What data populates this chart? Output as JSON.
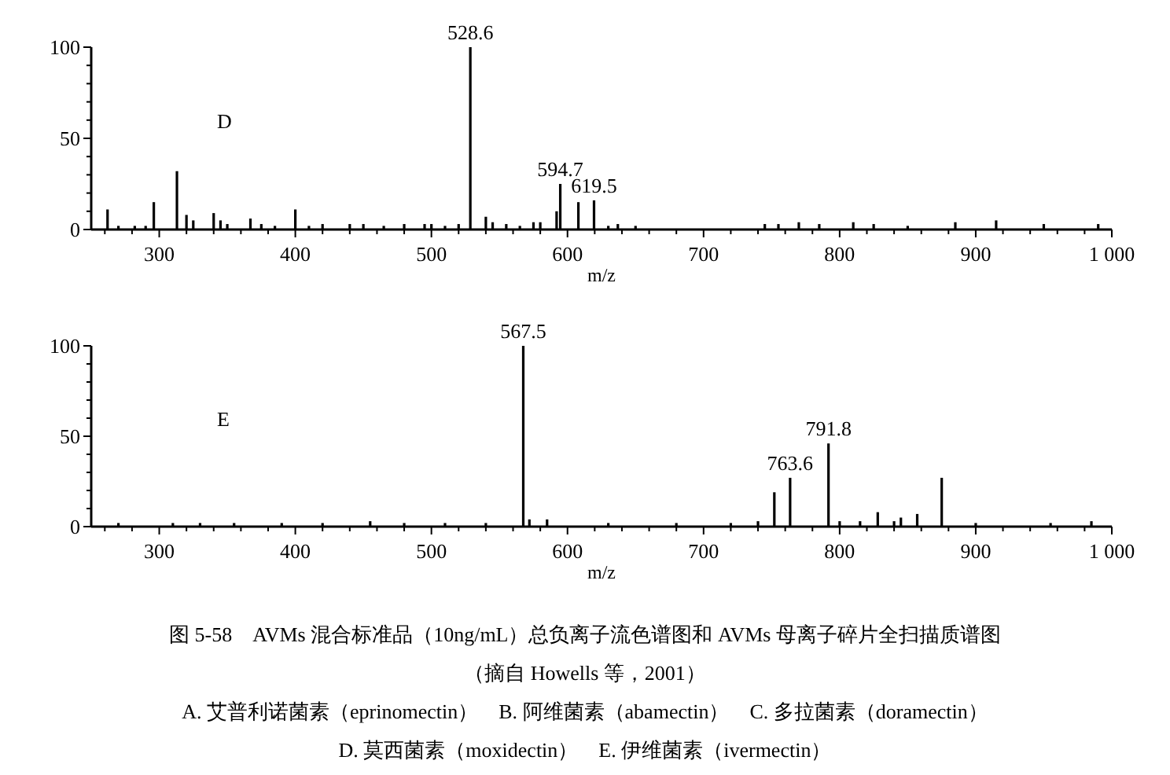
{
  "chart_data": [
    {
      "type": "bar",
      "title": "D",
      "xlabel": "m/z",
      "xlim": [
        250,
        1000
      ],
      "ylim": [
        0,
        100
      ],
      "xticks": [
        {
          "value": 260,
          "label": null
        },
        {
          "value": 280,
          "label": null
        },
        300,
        {
          "value": 320,
          "label": null
        },
        {
          "value": 340,
          "label": null
        },
        {
          "value": 360,
          "label": null
        },
        {
          "value": 380,
          "label": null
        },
        400,
        {
          "value": 420,
          "label": null
        },
        {
          "value": 440,
          "label": null
        },
        {
          "value": 460,
          "label": null
        },
        {
          "value": 480,
          "label": null
        },
        500,
        {
          "value": 520,
          "label": null
        },
        {
          "value": 540,
          "label": null
        },
        {
          "value": 560,
          "label": null
        },
        {
          "value": 580,
          "label": null
        },
        600,
        {
          "value": 620,
          "label": null
        },
        {
          "value": 640,
          "label": null
        },
        {
          "value": 660,
          "label": null
        },
        {
          "value": 680,
          "label": null
        },
        700,
        {
          "value": 720,
          "label": null
        },
        {
          "value": 740,
          "label": null
        },
        {
          "value": 760,
          "label": null
        },
        {
          "value": 780,
          "label": null
        },
        800,
        {
          "value": 820,
          "label": null
        },
        {
          "value": 840,
          "label": null
        },
        {
          "value": 860,
          "label": null
        },
        {
          "value": 880,
          "label": null
        },
        900,
        {
          "value": 920,
          "label": null
        },
        {
          "value": 940,
          "label": null
        },
        {
          "value": 960,
          "label": null
        },
        {
          "value": 980,
          "label": null
        },
        {
          "value": 1000,
          "label": "1 000"
        }
      ],
      "yticks": [
        0,
        {
          "value": 10,
          "label": null
        },
        {
          "value": 20,
          "label": null
        },
        {
          "value": 30,
          "label": null
        },
        {
          "value": 40,
          "label": null
        },
        50,
        {
          "value": 60,
          "label": null
        },
        {
          "value": 70,
          "label": null
        },
        {
          "value": 80,
          "label": null
        },
        {
          "value": 90,
          "label": null
        },
        100
      ],
      "color": "#000000",
      "x": [
        262,
        270,
        282,
        290,
        296,
        313,
        320,
        325,
        340,
        345,
        350,
        367,
        375,
        385,
        400,
        410,
        420,
        440,
        450,
        465,
        480,
        495,
        500,
        510,
        520,
        528.6,
        540,
        545,
        555,
        565,
        575,
        580,
        592,
        594.7,
        608,
        619.5,
        630,
        637,
        650,
        745,
        755,
        770,
        785,
        810,
        825,
        850,
        885,
        915,
        950,
        990
      ],
      "values": [
        11,
        2,
        2,
        2,
        15,
        32,
        8,
        5,
        9,
        5,
        3,
        6,
        3,
        2,
        11,
        2,
        3,
        3,
        3,
        2,
        3,
        3,
        3,
        2,
        3,
        100,
        7,
        4,
        3,
        2,
        4,
        4,
        10,
        25,
        15,
        16,
        2,
        3,
        2,
        3,
        3,
        4,
        3,
        4,
        3,
        2,
        4,
        5,
        3,
        3
      ],
      "annotations": [
        {
          "text": "528.6",
          "x": 528.6,
          "y": 100
        },
        {
          "text": "594.7",
          "x": 594.7,
          "y": 25
        },
        {
          "text": "619.5",
          "x": 619.5,
          "y": 16
        }
      ]
    },
    {
      "type": "bar",
      "title": "E",
      "xlabel": "m/z",
      "xlim": [
        250,
        1000
      ],
      "ylim": [
        0,
        100
      ],
      "xticks": [
        {
          "value": 260,
          "label": null
        },
        {
          "value": 280,
          "label": null
        },
        300,
        {
          "value": 320,
          "label": null
        },
        {
          "value": 340,
          "label": null
        },
        {
          "value": 360,
          "label": null
        },
        {
          "value": 380,
          "label": null
        },
        400,
        {
          "value": 420,
          "label": null
        },
        {
          "value": 440,
          "label": null
        },
        {
          "value": 460,
          "label": null
        },
        {
          "value": 480,
          "label": null
        },
        500,
        {
          "value": 520,
          "label": null
        },
        {
          "value": 540,
          "label": null
        },
        {
          "value": 560,
          "label": null
        },
        {
          "value": 580,
          "label": null
        },
        600,
        {
          "value": 620,
          "label": null
        },
        {
          "value": 640,
          "label": null
        },
        {
          "value": 660,
          "label": null
        },
        {
          "value": 680,
          "label": null
        },
        700,
        {
          "value": 720,
          "label": null
        },
        {
          "value": 740,
          "label": null
        },
        {
          "value": 760,
          "label": null
        },
        {
          "value": 780,
          "label": null
        },
        800,
        {
          "value": 820,
          "label": null
        },
        {
          "value": 840,
          "label": null
        },
        {
          "value": 860,
          "label": null
        },
        {
          "value": 880,
          "label": null
        },
        900,
        {
          "value": 920,
          "label": null
        },
        {
          "value": 940,
          "label": null
        },
        {
          "value": 960,
          "label": null
        },
        {
          "value": 980,
          "label": null
        },
        {
          "value": 1000,
          "label": "1 000"
        }
      ],
      "yticks": [
        0,
        {
          "value": 10,
          "label": null
        },
        {
          "value": 20,
          "label": null
        },
        {
          "value": 30,
          "label": null
        },
        {
          "value": 40,
          "label": null
        },
        50,
        {
          "value": 60,
          "label": null
        },
        {
          "value": 70,
          "label": null
        },
        {
          "value": 80,
          "label": null
        },
        {
          "value": 90,
          "label": null
        },
        100
      ],
      "color": "#000000",
      "x": [
        270,
        310,
        330,
        355,
        390,
        420,
        455,
        480,
        510,
        540,
        567.5,
        572,
        585,
        630,
        680,
        720,
        740,
        752,
        763.6,
        791.8,
        800,
        815,
        828,
        840,
        845,
        857,
        875,
        900,
        955,
        985
      ],
      "values": [
        2,
        2,
        2,
        2,
        2,
        2,
        3,
        2,
        2,
        2,
        100,
        4,
        4,
        2,
        2,
        2,
        3,
        19,
        27,
        46,
        3,
        3,
        8,
        3,
        5,
        7,
        27,
        2,
        2,
        3
      ],
      "annotations": [
        {
          "text": "567.5",
          "x": 567.5,
          "y": 100
        },
        {
          "text": "763.6",
          "x": 763.6,
          "y": 27
        },
        {
          "text": "791.8",
          "x": 791.8,
          "y": 46
        },
        "图 5-58　AVMs 混合标准品（10ng/mL）总负离子流色谱图和 AVMs 母离子碎片全扫描质谱图",
        "（摘自 Howells 等，2001）",
        "A. 艾普利诺菌素（eprinomectin）　B. 阿维菌素（abamectin）　C. 多拉菌素（doramectin）",
        "D. 莫西菌素（moxidectin）　E. 伊维菌素（ivermectin）"
      ]
    }
  ]
}
